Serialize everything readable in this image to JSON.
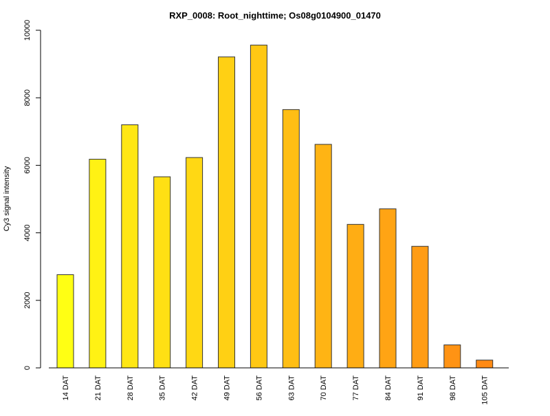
{
  "chart_data": {
    "type": "bar",
    "title": "RXP_0008: Root_nighttime; Os08g0104900_01470",
    "xlabel": "",
    "ylabel": "Cy3 signal intensity",
    "categories": [
      "14 DAT",
      "21 DAT",
      "28 DAT",
      "35 DAT",
      "42 DAT",
      "49 DAT",
      "56 DAT",
      "63 DAT",
      "70 DAT",
      "77 DAT",
      "84 DAT",
      "91 DAT",
      "98 DAT",
      "105 DAT"
    ],
    "values": [
      2760,
      6180,
      7200,
      5660,
      6230,
      9210,
      9560,
      7650,
      6620,
      4250,
      4710,
      3600,
      680,
      230
    ],
    "colors": [
      "#FFFF14",
      "#FFF214",
      "#FFE714",
      "#FFE014",
      "#FFD814",
      "#FFD014",
      "#FFC814",
      "#FFBE14",
      "#FFB414",
      "#FFAD14",
      "#FFA414",
      "#FF9C14",
      "#FF9314",
      "#FF8A14"
    ],
    "ylim": [
      0,
      10000
    ],
    "yticks": [
      0,
      2000,
      4000,
      6000,
      8000,
      10000
    ],
    "grid": false,
    "legend": "none"
  }
}
